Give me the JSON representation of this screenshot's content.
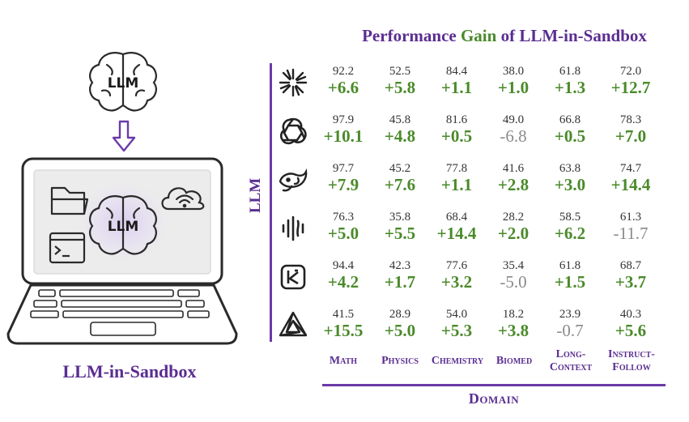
{
  "title": {
    "part1": "Performance ",
    "part2": "Gain",
    "part3": " of LLM-in-Sandbox"
  },
  "illustration": {
    "brain_label": "LLM",
    "laptop_brain_label": "LLM",
    "caption": "LLM-in-Sandbox"
  },
  "axes": {
    "y_label": "LLM",
    "x_label": "Domain"
  },
  "colors": {
    "accent": "#5a2d91",
    "gain_positive": "#4a8a2a",
    "gain_negative": "#8a8a8a"
  },
  "domains": [
    {
      "line1": "Math",
      "line2": ""
    },
    {
      "line1": "Physics",
      "line2": ""
    },
    {
      "line1": "Chemistry",
      "line2": ""
    },
    {
      "line1": "Biomed",
      "line2": ""
    },
    {
      "line1": "Long-",
      "line2": "Context"
    },
    {
      "line1": "Instruct-",
      "line2": "Follow"
    }
  ],
  "models": [
    {
      "icon": "starburst-logo-icon",
      "cells": [
        {
          "base": "92.2",
          "gain": "+6.6",
          "negative": false
        },
        {
          "base": "52.5",
          "gain": "+5.8",
          "negative": false
        },
        {
          "base": "84.4",
          "gain": "+1.1",
          "negative": false
        },
        {
          "base": "38.0",
          "gain": "+1.0",
          "negative": false
        },
        {
          "base": "61.8",
          "gain": "+1.3",
          "negative": false
        },
        {
          "base": "72.0",
          "gain": "+12.7",
          "negative": false
        }
      ]
    },
    {
      "icon": "knot-logo-icon",
      "cells": [
        {
          "base": "97.9",
          "gain": "+10.1",
          "negative": false
        },
        {
          "base": "45.8",
          "gain": "+4.8",
          "negative": false
        },
        {
          "base": "81.6",
          "gain": "+0.5",
          "negative": false
        },
        {
          "base": "49.0",
          "gain": "-6.8",
          "negative": true
        },
        {
          "base": "66.8",
          "gain": "+0.5",
          "negative": false
        },
        {
          "base": "78.3",
          "gain": "+7.0",
          "negative": false
        }
      ]
    },
    {
      "icon": "whale-logo-icon",
      "cells": [
        {
          "base": "97.7",
          "gain": "+7.9",
          "negative": false
        },
        {
          "base": "45.2",
          "gain": "+7.6",
          "negative": false
        },
        {
          "base": "77.8",
          "gain": "+1.1",
          "negative": false
        },
        {
          "base": "41.6",
          "gain": "+2.8",
          "negative": false
        },
        {
          "base": "63.8",
          "gain": "+3.0",
          "negative": false
        },
        {
          "base": "74.7",
          "gain": "+14.4",
          "negative": false
        }
      ]
    },
    {
      "icon": "soundwave-logo-icon",
      "cells": [
        {
          "base": "76.3",
          "gain": "+5.0",
          "negative": false
        },
        {
          "base": "35.8",
          "gain": "+5.5",
          "negative": false
        },
        {
          "base": "68.4",
          "gain": "+14.4",
          "negative": false
        },
        {
          "base": "28.2",
          "gain": "+2.0",
          "negative": false
        },
        {
          "base": "58.5",
          "gain": "+6.2",
          "negative": false
        },
        {
          "base": "61.3",
          "gain": "-11.7",
          "negative": true
        }
      ]
    },
    {
      "icon": "k-box-logo-icon",
      "cells": [
        {
          "base": "94.4",
          "gain": "+4.2",
          "negative": false
        },
        {
          "base": "42.3",
          "gain": "+1.7",
          "negative": false
        },
        {
          "base": "77.6",
          "gain": "+3.2",
          "negative": false
        },
        {
          "base": "35.4",
          "gain": "-5.0",
          "negative": true
        },
        {
          "base": "61.8",
          "gain": "+1.5",
          "negative": false
        },
        {
          "base": "68.7",
          "gain": "+3.7",
          "negative": false
        }
      ]
    },
    {
      "icon": "triangle-logo-icon",
      "cells": [
        {
          "base": "41.5",
          "gain": "+15.5",
          "negative": false
        },
        {
          "base": "28.9",
          "gain": "+5.0",
          "negative": false
        },
        {
          "base": "54.0",
          "gain": "+5.3",
          "negative": false
        },
        {
          "base": "18.2",
          "gain": "+3.8",
          "negative": false
        },
        {
          "base": "23.9",
          "gain": "-0.7",
          "negative": true
        },
        {
          "base": "40.3",
          "gain": "+5.6",
          "negative": false
        }
      ]
    }
  ]
}
